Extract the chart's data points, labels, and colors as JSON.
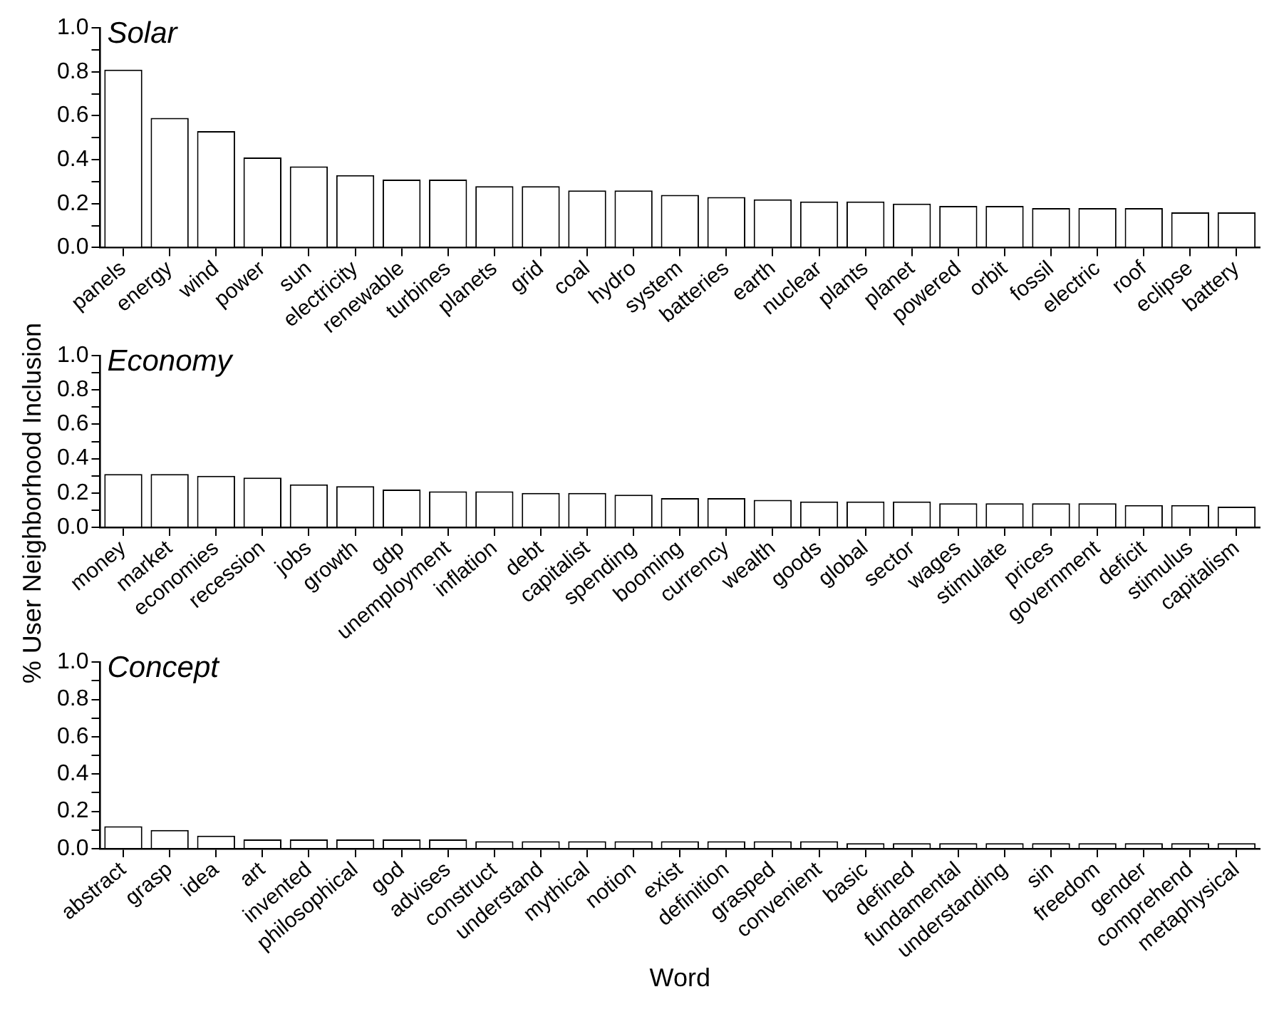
{
  "chart_data": [
    {
      "type": "bar",
      "title": "Solar",
      "categories": [
        "panels",
        "energy",
        "wind",
        "power",
        "sun",
        "electricity",
        "renewable",
        "turbines",
        "planets",
        "grid",
        "coal",
        "hydro",
        "system",
        "batteries",
        "earth",
        "nuclear",
        "plants",
        "planet",
        "powered",
        "orbit",
        "fossil",
        "electric",
        "roof",
        "eclipse",
        "battery"
      ],
      "values": [
        0.81,
        0.59,
        0.53,
        0.41,
        0.37,
        0.33,
        0.31,
        0.31,
        0.28,
        0.28,
        0.26,
        0.26,
        0.24,
        0.23,
        0.22,
        0.21,
        0.21,
        0.2,
        0.19,
        0.19,
        0.18,
        0.18,
        0.18,
        0.16,
        0.16
      ],
      "color": "#ffffff",
      "ylim": [
        0,
        1
      ],
      "yticks": [
        {
          "value": 0,
          "label": "0.0"
        },
        {
          "value": 0.1,
          "label": null
        },
        {
          "value": 0.2,
          "label": "0.2"
        },
        {
          "value": 0.3,
          "label": null
        },
        {
          "value": 0.4,
          "label": "0.4"
        },
        {
          "value": 0.5,
          "label": null
        },
        {
          "value": 0.6,
          "label": "0.6"
        },
        {
          "value": 0.7,
          "label": null
        },
        {
          "value": 0.8,
          "label": "0.8"
        },
        {
          "value": 0.9,
          "label": null
        },
        {
          "value": 1,
          "label": "1.0"
        }
      ],
      "grid": false
    },
    {
      "type": "bar",
      "title": "Economy",
      "ylabel": "% User Neighborhood Inclusion",
      "categories": [
        "money",
        "market",
        "economies",
        "recession",
        "jobs",
        "growth",
        "gdp",
        "unemployment",
        "inflation",
        "debt",
        "capitalist",
        "spending",
        "booming",
        "currency",
        "wealth",
        "goods",
        "global",
        "sector",
        "wages",
        "stimulate",
        "prices",
        "government",
        "deficit",
        "stimulus",
        "capitalism"
      ],
      "values": [
        0.31,
        0.31,
        0.3,
        0.29,
        0.25,
        0.24,
        0.22,
        0.21,
        0.21,
        0.2,
        0.2,
        0.19,
        0.17,
        0.17,
        0.16,
        0.15,
        0.15,
        0.15,
        0.14,
        0.14,
        0.14,
        0.14,
        0.13,
        0.13,
        0.12
      ],
      "color": "#ffffff",
      "ylim": [
        0,
        1
      ],
      "yticks": [
        {
          "value": 0,
          "label": "0.0"
        },
        {
          "value": 0.1,
          "label": null
        },
        {
          "value": 0.2,
          "label": "0.2"
        },
        {
          "value": 0.3,
          "label": null
        },
        {
          "value": 0.4,
          "label": "0.4"
        },
        {
          "value": 0.5,
          "label": null
        },
        {
          "value": 0.6,
          "label": "0.6"
        },
        {
          "value": 0.7,
          "label": null
        },
        {
          "value": 0.8,
          "label": "0.8"
        },
        {
          "value": 0.9,
          "label": null
        },
        {
          "value": 1,
          "label": "1.0"
        }
      ],
      "grid": false
    },
    {
      "type": "bar",
      "title": "Concept",
      "xlabel": "Word",
      "categories": [
        "abstract",
        "grasp",
        "idea",
        "art",
        "invented",
        "philosophical",
        "god",
        "advises",
        "construct",
        "understand",
        "mythical",
        "notion",
        "exist",
        "definition",
        "grasped",
        "convenient",
        "basic",
        "defined",
        "fundamental",
        "understanding",
        "sin",
        "freedom",
        "gender",
        "comprehend",
        "metaphysical"
      ],
      "values": [
        0.12,
        0.1,
        0.07,
        0.05,
        0.05,
        0.05,
        0.05,
        0.05,
        0.04,
        0.04,
        0.04,
        0.04,
        0.04,
        0.04,
        0.04,
        0.04,
        0.03,
        0.03,
        0.03,
        0.03,
        0.03,
        0.03,
        0.03,
        0.03,
        0.03
      ],
      "color": "#ffffff",
      "ylim": [
        0,
        1
      ],
      "yticks": [
        {
          "value": 0,
          "label": "0.0"
        },
        {
          "value": 0.1,
          "label": null
        },
        {
          "value": 0.2,
          "label": "0.2"
        },
        {
          "value": 0.3,
          "label": null
        },
        {
          "value": 0.4,
          "label": "0.4"
        },
        {
          "value": 0.5,
          "label": null
        },
        {
          "value": 0.6,
          "label": "0.6"
        },
        {
          "value": 0.7,
          "label": null
        },
        {
          "value": 0.8,
          "label": "0.8"
        },
        {
          "value": 0.9,
          "label": null
        },
        {
          "value": 1,
          "label": "1.0"
        }
      ],
      "grid": false
    }
  ]
}
